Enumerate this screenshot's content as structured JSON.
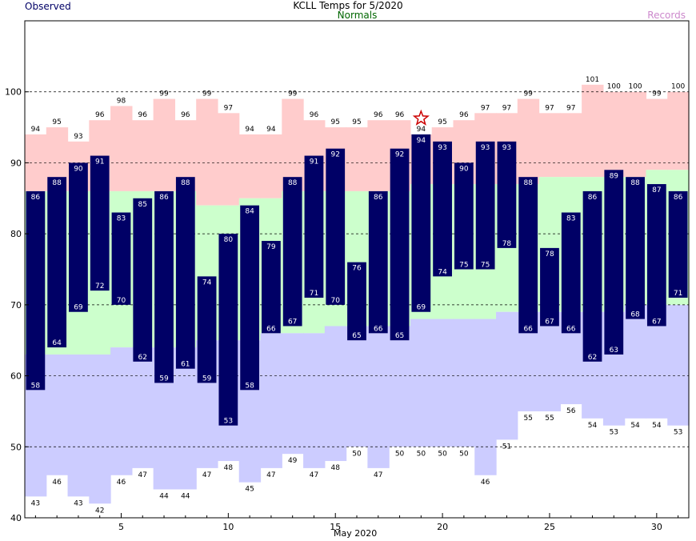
{
  "chart_data": {
    "type": "bar",
    "title": "KCLL Temps for 5/2020",
    "xlabel": "May 2020",
    "ylabel": "",
    "legend": {
      "observed": "Observed",
      "normals": "Normals",
      "records": "Records"
    },
    "ylim": [
      40,
      110
    ],
    "xlim": [
      0.5,
      31.5
    ],
    "y_ticks": [
      40,
      50,
      60,
      70,
      80,
      90,
      100
    ],
    "x_ticks": [
      5,
      10,
      15,
      20,
      25,
      30
    ],
    "dashed_gridlines": [
      50,
      60,
      70,
      80,
      90,
      100
    ],
    "days": [
      1,
      2,
      3,
      4,
      5,
      6,
      7,
      8,
      9,
      10,
      11,
      12,
      13,
      14,
      15,
      16,
      17,
      18,
      19,
      20,
      21,
      22,
      23,
      24,
      25,
      26,
      27,
      28,
      29,
      30,
      31
    ],
    "series": [
      {
        "name": "Observed",
        "type": "floating_bar",
        "high": [
          86,
          88,
          90,
          91,
          83,
          85,
          86,
          88,
          74,
          80,
          84,
          79,
          88,
          91,
          92,
          76,
          86,
          92,
          94,
          93,
          90,
          93,
          93,
          88,
          78,
          83,
          86,
          89,
          88,
          87,
          86
        ],
        "low": [
          58,
          64,
          69,
          72,
          70,
          62,
          59,
          61,
          59,
          53,
          58,
          66,
          67,
          71,
          70,
          65,
          66,
          65,
          69,
          74,
          75,
          75,
          78,
          66,
          67,
          66,
          62,
          63,
          68,
          67,
          71
        ]
      },
      {
        "name": "Normals",
        "high": [
          86,
          86,
          86,
          86,
          86,
          86,
          86,
          86,
          84,
          84,
          85,
          85,
          86,
          86,
          86,
          86,
          86,
          86,
          87,
          87,
          87,
          87,
          87,
          87,
          88,
          88,
          88,
          88,
          88,
          89,
          89
        ],
        "low": [
          63,
          63,
          63,
          63,
          64,
          64,
          64,
          64,
          65,
          65,
          65,
          66,
          66,
          66,
          67,
          67,
          67,
          67,
          68,
          68,
          68,
          68,
          69,
          69,
          69,
          69,
          69,
          69,
          70,
          70,
          70
        ]
      },
      {
        "name": "Records",
        "high": [
          94,
          95,
          93,
          96,
          98,
          96,
          99,
          96,
          99,
          97,
          94,
          94,
          99,
          96,
          95,
          95,
          96,
          96,
          94,
          95,
          96,
          97,
          97,
          99,
          97,
          97,
          101,
          100,
          100,
          99,
          100
        ],
        "low": [
          43,
          46,
          43,
          42,
          46,
          47,
          44,
          44,
          47,
          48,
          45,
          47,
          49,
          47,
          48,
          50,
          47,
          50,
          50,
          50,
          50,
          46,
          51,
          55,
          55,
          56,
          54,
          53,
          54,
          54,
          53
        ]
      }
    ],
    "record_marker_day": 19,
    "colors": {
      "observed_bar": "#000066",
      "normal_band": "#ccffcc",
      "record_high_band": "#ffcccc",
      "record_low_band": "#ccccff",
      "record_star": "#cc0000",
      "legend_observed": "#000066",
      "legend_normals": "#006600",
      "legend_records": "#cc88cc"
    }
  }
}
